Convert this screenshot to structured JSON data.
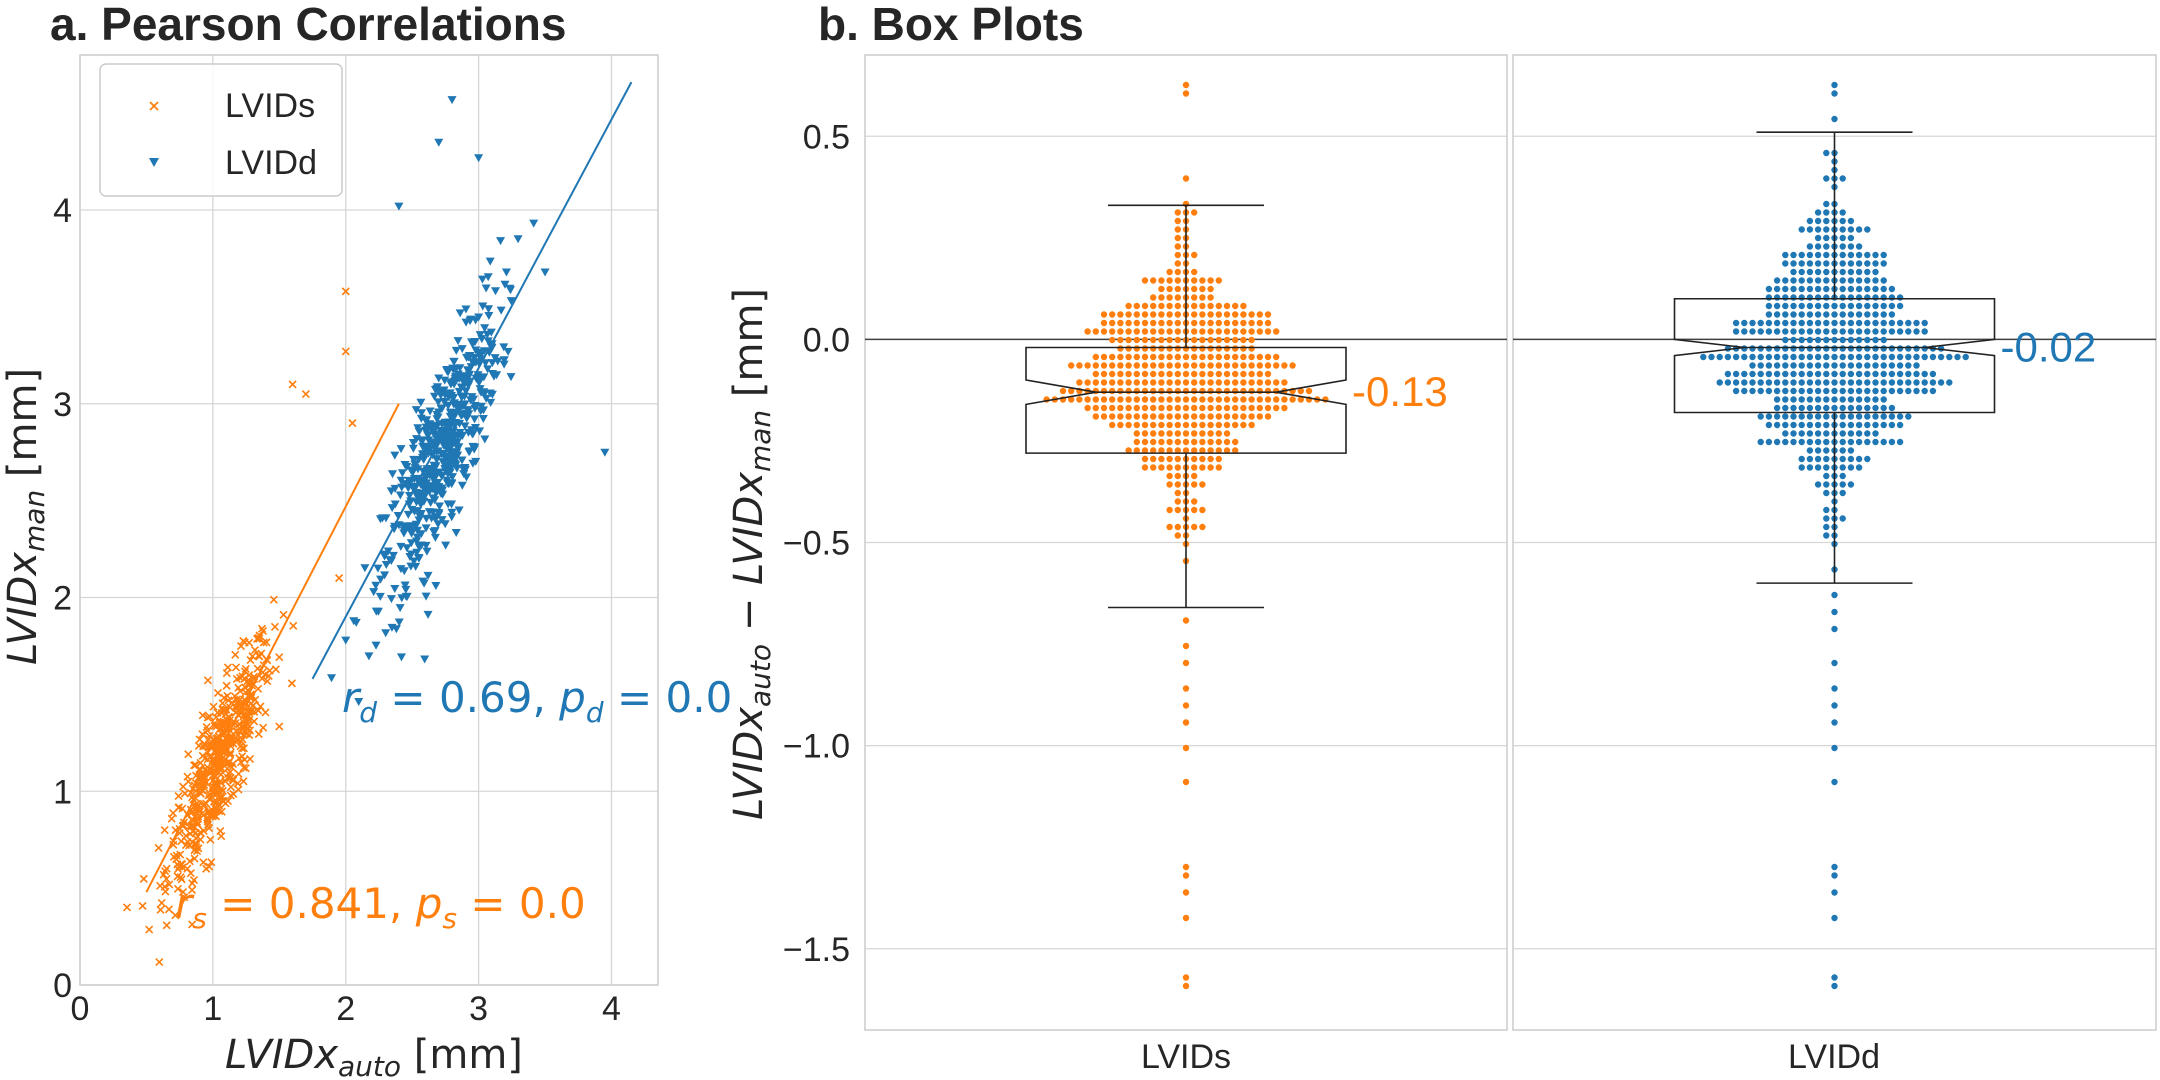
{
  "colors": {
    "lvids": "#ff7f0e",
    "lvidd": "#1f77b4",
    "grid": "#d0d0d0",
    "text": "#262626"
  },
  "chart_data": [
    {
      "type": "scatter",
      "title": "a. Pearson Correlations",
      "xlabel_main": "LVIDx",
      "xlabel_sub": "auto",
      "xlabel_unit": " [mm]",
      "ylabel_main": "LVIDx",
      "ylabel_sub": "man",
      "ylabel_unit": " [mm]",
      "xlim": [
        0,
        4.35
      ],
      "ylim": [
        0,
        4.8
      ],
      "xticks": [
        0,
        1,
        2,
        3,
        4
      ],
      "yticks": [
        0,
        1,
        2,
        3,
        4
      ],
      "grid": true,
      "legend": {
        "position": "top-left",
        "entries": [
          "LVIDs",
          "LVIDd"
        ]
      },
      "series": [
        {
          "name": "LVIDs",
          "marker": "x",
          "color": "#ff7f0e",
          "center": [
            1.05,
            1.15
          ],
          "spread": [
            0.2,
            0.3
          ],
          "slope": 1.35,
          "n": 520,
          "fit": {
            "x": [
              0.5,
              2.4
            ],
            "y": [
              0.48,
              3.0
            ]
          },
          "outliers": [
            [
              2.0,
              3.58
            ],
            [
              2.0,
              3.27
            ],
            [
              1.6,
              3.1
            ],
            [
              1.7,
              3.05
            ],
            [
              2.05,
              2.9
            ],
            [
              0.95,
              0.6
            ],
            [
              1.95,
              2.1
            ]
          ]
        },
        {
          "name": "LVIDd",
          "marker": "v",
          "color": "#1f77b4",
          "center": [
            2.72,
            2.75
          ],
          "spread": [
            0.22,
            0.4
          ],
          "slope": 1.45,
          "n": 560,
          "fit": {
            "x": [
              1.75,
              4.15
            ],
            "y": [
              1.58,
              4.66
            ]
          },
          "outliers": [
            [
              2.8,
              4.57
            ],
            [
              2.7,
              4.35
            ],
            [
              3.0,
              4.27
            ],
            [
              2.4,
              4.02
            ],
            [
              3.5,
              3.68
            ],
            [
              3.95,
              2.75
            ],
            [
              2.0,
              1.78
            ]
          ]
        }
      ],
      "annotations": [
        {
          "text": "r_s = 0.841, p_s = 0.0",
          "r_sym": "r",
          "r_sub": "s",
          "r_val": " = 0.841, ",
          "p_sym": "p",
          "p_sub": "s",
          "p_val": " = 0.0",
          "series": "LVIDs"
        },
        {
          "text": "r_d = 0.69, p_d = 0.0",
          "r_sym": "r",
          "r_sub": "d",
          "r_val": " = 0.69, ",
          "p_sym": "p",
          "p_sub": "d",
          "p_val": " = 0.0",
          "series": "LVIDd"
        }
      ]
    },
    {
      "type": "box",
      "title": "b. Box Plots",
      "ylabel": "LVIDx_auto − LVIDx_man [mm]",
      "ylabel_parts": {
        "a": "LVIDx",
        "a_sub": "auto",
        "minus": " − ",
        "b": "LVIDx",
        "b_sub": "man",
        "unit": " [mm]"
      },
      "ylim": [
        -1.7,
        0.7
      ],
      "yticks": [
        0.5,
        0.0,
        -0.5,
        -1.0,
        -1.5
      ],
      "ytick_labels": [
        "0.5",
        "0.0",
        "−0.5",
        "−1.0",
        "−1.5"
      ],
      "categories": [
        "LVIDs",
        "LVIDd"
      ],
      "reference_line": 0.0,
      "boxes": [
        {
          "name": "LVIDs",
          "color": "#ff7f0e",
          "median": -0.13,
          "median_label": "-0.13",
          "q1": -0.28,
          "q3": -0.02,
          "notch": [
            -0.16,
            -0.1
          ],
          "whisker_low": -0.66,
          "whisker_high": 0.33,
          "swarm_center": -0.1,
          "swarm_spread": 0.15,
          "n": 480,
          "tail": [
            -0.7,
            -0.75,
            -0.8,
            -0.86,
            -0.9,
            -0.95,
            -1.0,
            -1.08,
            -1.3,
            -1.33,
            -1.37,
            -1.43,
            -1.57,
            -1.6,
            0.4,
            0.6,
            0.63
          ]
        },
        {
          "name": "LVIDd",
          "color": "#1f77b4",
          "median": -0.02,
          "median_label": "-0.02",
          "q1": -0.18,
          "q3": 0.1,
          "notch": [
            -0.04,
            0.0
          ],
          "whisker_low": -0.6,
          "whisker_high": 0.51,
          "swarm_center": -0.05,
          "swarm_spread": 0.17,
          "n": 520,
          "tail": [
            -0.62,
            -0.68,
            -0.72,
            -0.8,
            -0.86,
            -0.9,
            -0.95,
            -1.0,
            -1.08,
            -1.3,
            -1.33,
            -1.37,
            -1.43,
            -1.57,
            -1.6,
            0.45,
            0.55,
            0.6,
            0.63
          ]
        }
      ]
    }
  ]
}
